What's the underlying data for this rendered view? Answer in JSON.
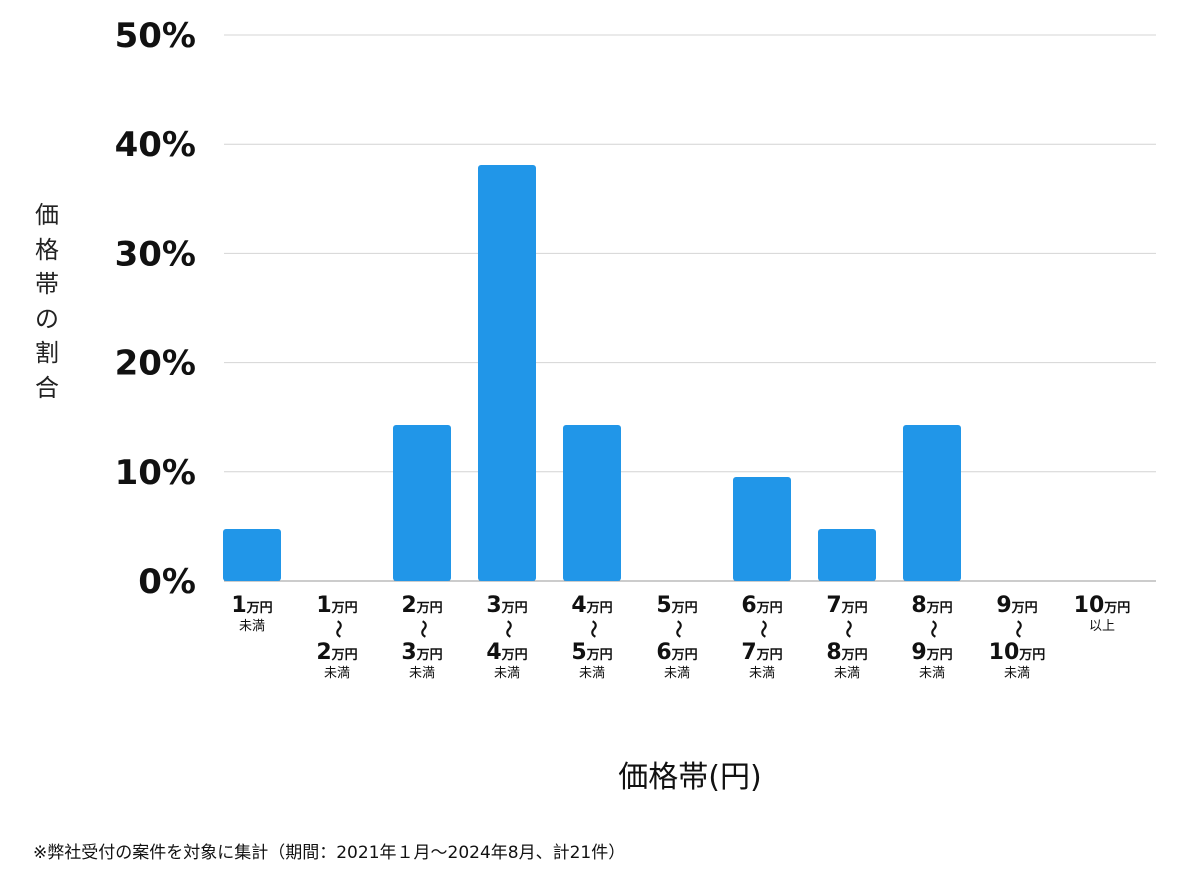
{
  "chart_data": {
    "type": "bar",
    "ylabel": "価格帯の割合",
    "xlabel": "価格帯(円)",
    "ylim": [
      0,
      50
    ],
    "yticks": [
      "0%",
      "10%",
      "20%",
      "30%",
      "40%",
      "50%"
    ],
    "grid": true,
    "bar_color": "#2196E8",
    "categories": [
      {
        "lines": [
          {
            "num": "1",
            "unit": "万円"
          },
          {
            "text": "未満"
          }
        ]
      },
      {
        "lines": [
          {
            "num": "1",
            "unit": "万円"
          },
          {
            "tilde": "〜"
          },
          {
            "num": "2",
            "unit": "万円"
          },
          {
            "text": "未満"
          }
        ]
      },
      {
        "lines": [
          {
            "num": "2",
            "unit": "万円"
          },
          {
            "tilde": "〜"
          },
          {
            "num": "3",
            "unit": "万円"
          },
          {
            "text": "未満"
          }
        ]
      },
      {
        "lines": [
          {
            "num": "3",
            "unit": "万円"
          },
          {
            "tilde": "〜"
          },
          {
            "num": "4",
            "unit": "万円"
          },
          {
            "text": "未満"
          }
        ]
      },
      {
        "lines": [
          {
            "num": "4",
            "unit": "万円"
          },
          {
            "tilde": "〜"
          },
          {
            "num": "5",
            "unit": "万円"
          },
          {
            "text": "未満"
          }
        ]
      },
      {
        "lines": [
          {
            "num": "5",
            "unit": "万円"
          },
          {
            "tilde": "〜"
          },
          {
            "num": "6",
            "unit": "万円"
          },
          {
            "text": "未満"
          }
        ]
      },
      {
        "lines": [
          {
            "num": "6",
            "unit": "万円"
          },
          {
            "tilde": "〜"
          },
          {
            "num": "7",
            "unit": "万円"
          },
          {
            "text": "未満"
          }
        ]
      },
      {
        "lines": [
          {
            "num": "7",
            "unit": "万円"
          },
          {
            "tilde": "〜"
          },
          {
            "num": "8",
            "unit": "万円"
          },
          {
            "text": "未満"
          }
        ]
      },
      {
        "lines": [
          {
            "num": "8",
            "unit": "万円"
          },
          {
            "tilde": "〜"
          },
          {
            "num": "9",
            "unit": "万円"
          },
          {
            "text": "未満"
          }
        ]
      },
      {
        "lines": [
          {
            "num": "9",
            "unit": "万円"
          },
          {
            "tilde": "〜"
          },
          {
            "num": "10",
            "unit": "万円"
          },
          {
            "text": "未満"
          }
        ]
      },
      {
        "lines": [
          {
            "num": "10",
            "unit": "万円"
          },
          {
            "text": "以上"
          }
        ]
      }
    ],
    "values": [
      4.76,
      0,
      14.29,
      38.1,
      14.29,
      0,
      9.52,
      4.76,
      14.29,
      0,
      0
    ]
  },
  "footnote": "※弊社受付の案件を対象に集計（期間：2021年１月〜2024年8月、計21件）"
}
